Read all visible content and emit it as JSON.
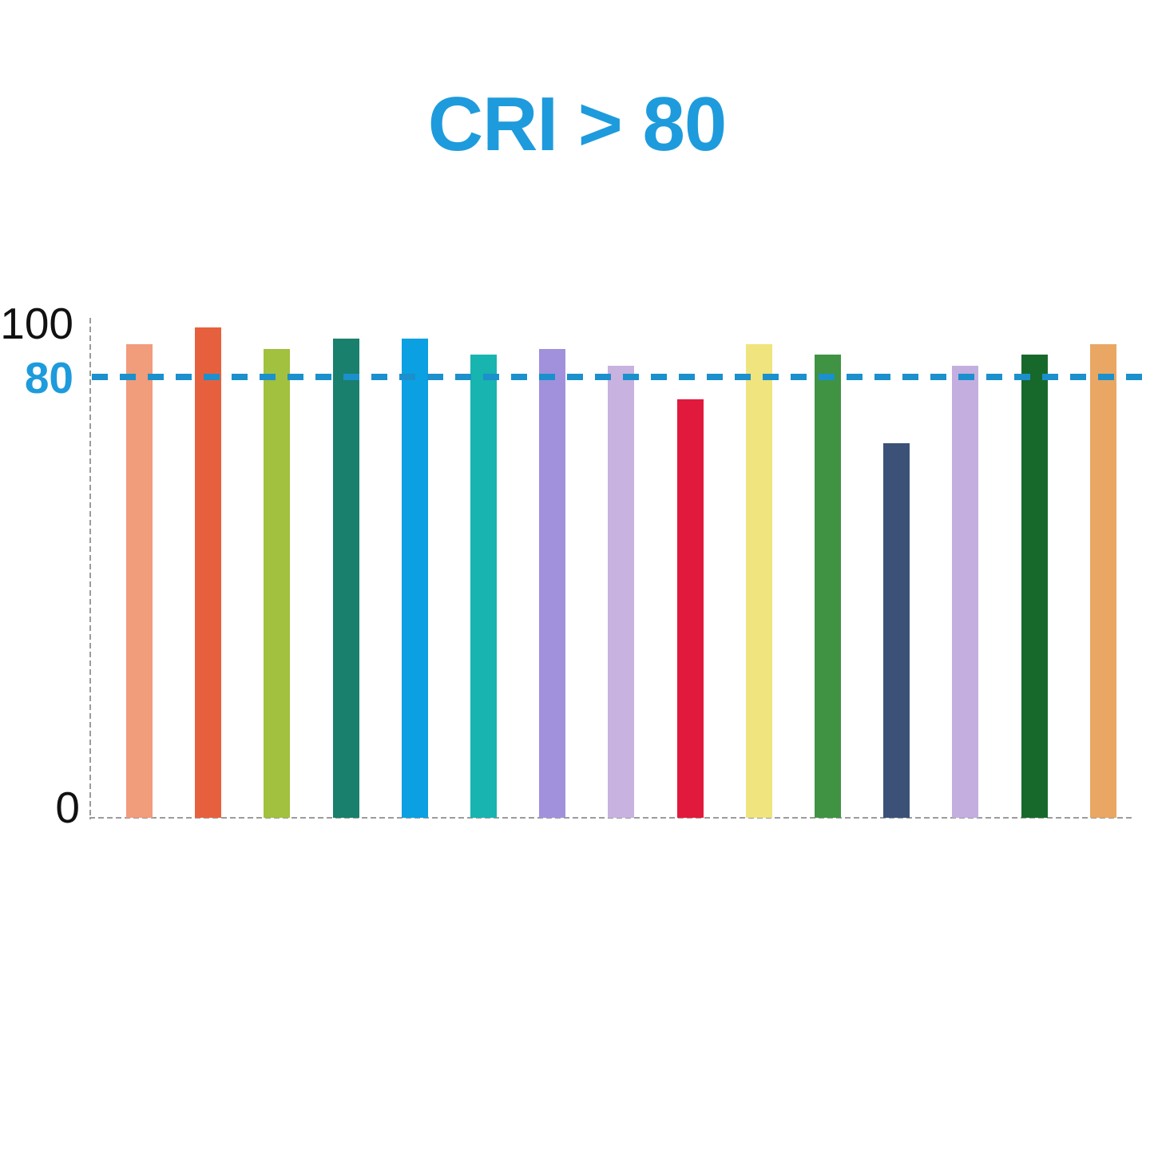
{
  "chart_data": {
    "type": "bar",
    "title": "CRI > 80",
    "xlabel": "",
    "ylabel": "",
    "ylim": [
      0,
      100
    ],
    "grid": "off",
    "legend": "none",
    "y_tick_labels": [
      "100",
      "80",
      "0"
    ],
    "y_ticks": [
      100,
      80,
      0
    ],
    "reference_line": {
      "value": 80,
      "style": "dashed",
      "color": "#1B90CC"
    },
    "categories": [
      "",
      "",
      "",
      "",
      "",
      "",
      "",
      "",
      "",
      "",
      "",
      "",
      "",
      "",
      ""
    ],
    "series": [
      {
        "name": "CRI",
        "values": [
          86,
          89,
          85,
          87,
          87,
          84,
          85,
          82,
          76,
          86,
          84,
          68,
          82,
          84,
          86
        ]
      }
    ],
    "bar_colors": [
      "#F19C7B",
      "#E7603E",
      "#A1C13F",
      "#18806C",
      "#0AA0E2",
      "#18B4AF",
      "#A191DC",
      "#C8B2DF",
      "#E1193C",
      "#EFE47D",
      "#3F9343",
      "#3B5178",
      "#C4AEE0",
      "#17692B",
      "#E9A763"
    ]
  },
  "colors": {
    "title_blue": "#1E9BDC",
    "reference_line_blue": "#1B90CC",
    "axis_gray": "#9c9c9c",
    "tick_black": "#111111",
    "background": "#ffffff"
  }
}
